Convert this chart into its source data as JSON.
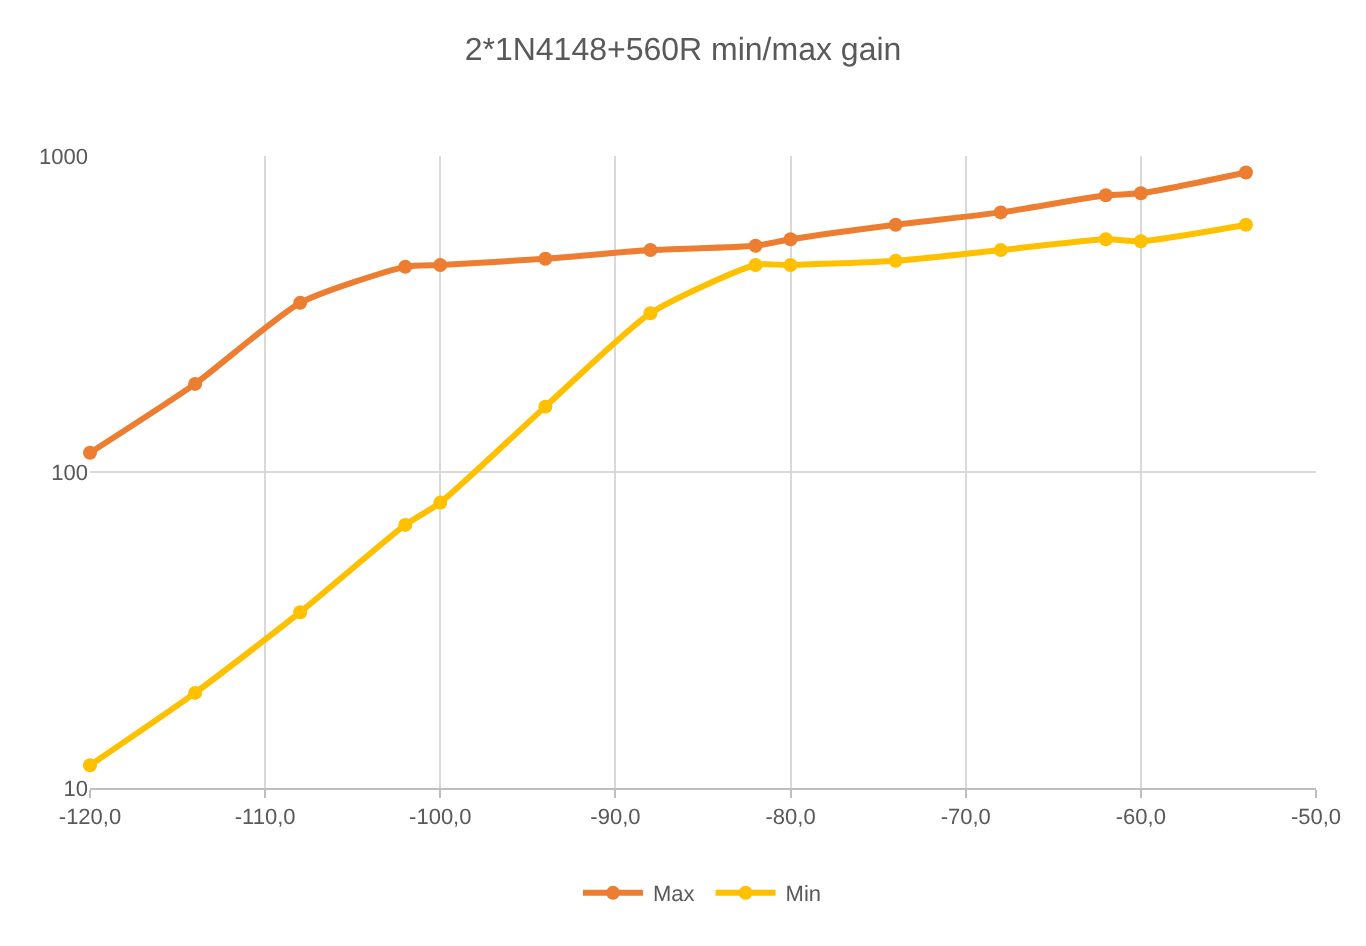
{
  "chart_data": {
    "type": "line",
    "title": "2*1N4148+560R min/max gain",
    "x": [
      -120,
      -114,
      -108,
      -102,
      -100,
      -94,
      -88,
      -82,
      -80,
      -74,
      -68,
      -62,
      -60,
      -54
    ],
    "series": [
      {
        "name": "Max",
        "color": "#ed7d31",
        "values": [
          115,
          190,
          343,
          446,
          452,
          473,
          504,
          520,
          545,
          606,
          663,
          751,
          762,
          887
        ]
      },
      {
        "name": "Min",
        "color": "#ffc000",
        "values": [
          11.8,
          20,
          36,
          68,
          80,
          161,
          318,
          452,
          452,
          466,
          504,
          545,
          537,
          606
        ]
      }
    ],
    "xlim": [
      -120,
      -50
    ],
    "xticks": [
      {
        "value": -120,
        "label": "-120,0"
      },
      {
        "value": -110,
        "label": "-110,0"
      },
      {
        "value": -100,
        "label": "-100,0"
      },
      {
        "value": -90,
        "label": "-90,0"
      },
      {
        "value": -80,
        "label": "-80,0"
      },
      {
        "value": -70,
        "label": "-70,0"
      },
      {
        "value": -60,
        "label": "-60,0"
      },
      {
        "value": -50,
        "label": "-50,0"
      }
    ],
    "ylim": [
      10,
      1000
    ],
    "yticks": [
      10,
      100,
      1000
    ],
    "log": "y",
    "grid": true,
    "legend": "bottom",
    "marker": "circle",
    "line_style": "solid"
  }
}
